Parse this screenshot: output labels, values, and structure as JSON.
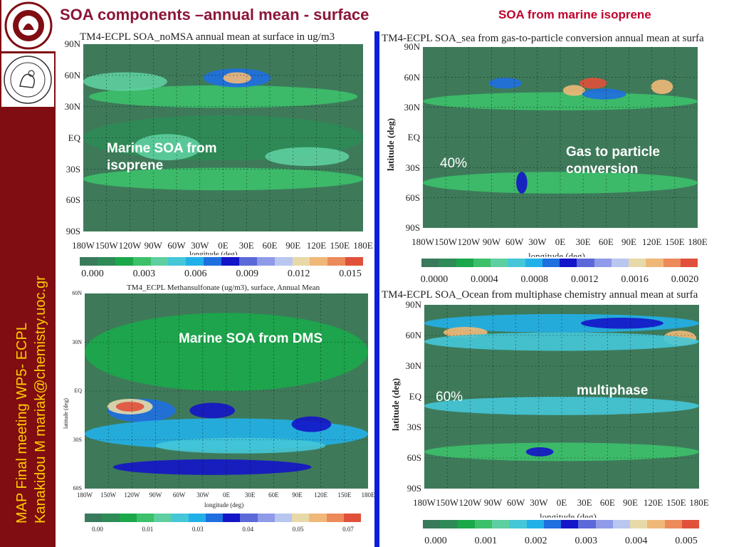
{
  "slide": {
    "title": "SOA components –annual mean - surface",
    "subtitle": "SOA from marine isoprene"
  },
  "sidebar": {
    "meeting_line": "MAP Final meeting       WP5- ECPL",
    "author_line": "Kanakidou M mariak@chemistry.uoc.gr"
  },
  "panels": [
    {
      "title": "TM4-ECPL SOA_noMSA annual mean at surface in ug/m3",
      "annotation": "Marine SOA from isoprene",
      "lat_ticks": [
        "90N",
        "60N",
        "30N",
        "EQ",
        "30S",
        "60S",
        "90S"
      ],
      "lon_ticks": [
        "180W",
        "150W",
        "120W",
        "90W",
        "60W",
        "30W",
        "0E",
        "30E",
        "60E",
        "90E",
        "120E",
        "150E",
        "180E"
      ],
      "xlabel": "longitude (deg)",
      "cbar_ticks": [
        "0.000",
        "0.003",
        "0.006",
        "0.009",
        "0.012",
        "0.015"
      ]
    },
    {
      "title": "TM4-ECPL SOA_sea from gas-to-particle conversion  annual mean at surfa",
      "annotation": "Gas to particle conversion",
      "percent": "40%",
      "ylabel": "latitude (deg)",
      "lat_ticks": [
        "90N",
        "60N",
        "30N",
        "EQ",
        "30S",
        "60S",
        "90S"
      ],
      "lon_ticks": [
        "180W",
        "150W",
        "120W",
        "90W",
        "60W",
        "30W",
        "0E",
        "30E",
        "60E",
        "90E",
        "120E",
        "150E",
        "180E"
      ],
      "xlabel": "longitude (deg)",
      "cbar_ticks": [
        "0.0000",
        "0.0004",
        "0.0008",
        "0.0012",
        "0.0016",
        "0.0020"
      ]
    },
    {
      "title": "TM4_ECPL Methansulfonate (ug/m3), surface, Annual Mean",
      "annotation": "Marine SOA from DMS",
      "ylabel": "latitude (deg)",
      "lat_ticks": [
        "60N",
        "30N",
        "EQ",
        "30S",
        "60S"
      ],
      "lon_ticks": [
        "180W",
        "150W",
        "120W",
        "90W",
        "60W",
        "30W",
        "0E",
        "30E",
        "60E",
        "90E",
        "120E",
        "150E",
        "180E"
      ],
      "xlabel": "longitude (deg)",
      "cbar_ticks": [
        "0.00",
        "0.01",
        "0.03",
        "0.04",
        "0.05",
        "0.07"
      ]
    },
    {
      "title": "TM4-ECPL SOA_Ocean from multiphase chemistry  annual mean at surfa",
      "annotation": "multiphase",
      "percent": "60%",
      "ylabel": "latitude (deg)",
      "lat_ticks": [
        "90N",
        "60N",
        "30N",
        "EQ",
        "30S",
        "60S",
        "90S"
      ],
      "lon_ticks": [
        "180W",
        "150W",
        "120W",
        "90W",
        "60W",
        "30W",
        "0E",
        "30E",
        "60E",
        "90E",
        "120E",
        "150E",
        "180E"
      ],
      "xlabel": "longitude (deg)",
      "cbar_ticks": [
        "0.000",
        "0.001",
        "0.002",
        "0.003",
        "0.004",
        "0.005"
      ]
    }
  ],
  "colorscale": [
    "#3a7a5c",
    "#2e8b57",
    "#1aa84a",
    "#3cc06a",
    "#5ecfa0",
    "#45c7d8",
    "#22b0e8",
    "#1f6fe0",
    "#1414c8",
    "#5b6ad8",
    "#8f9be8",
    "#b9c6f0",
    "#e8d9a8",
    "#f0b878",
    "#ec8a5a",
    "#e0503a"
  ]
}
